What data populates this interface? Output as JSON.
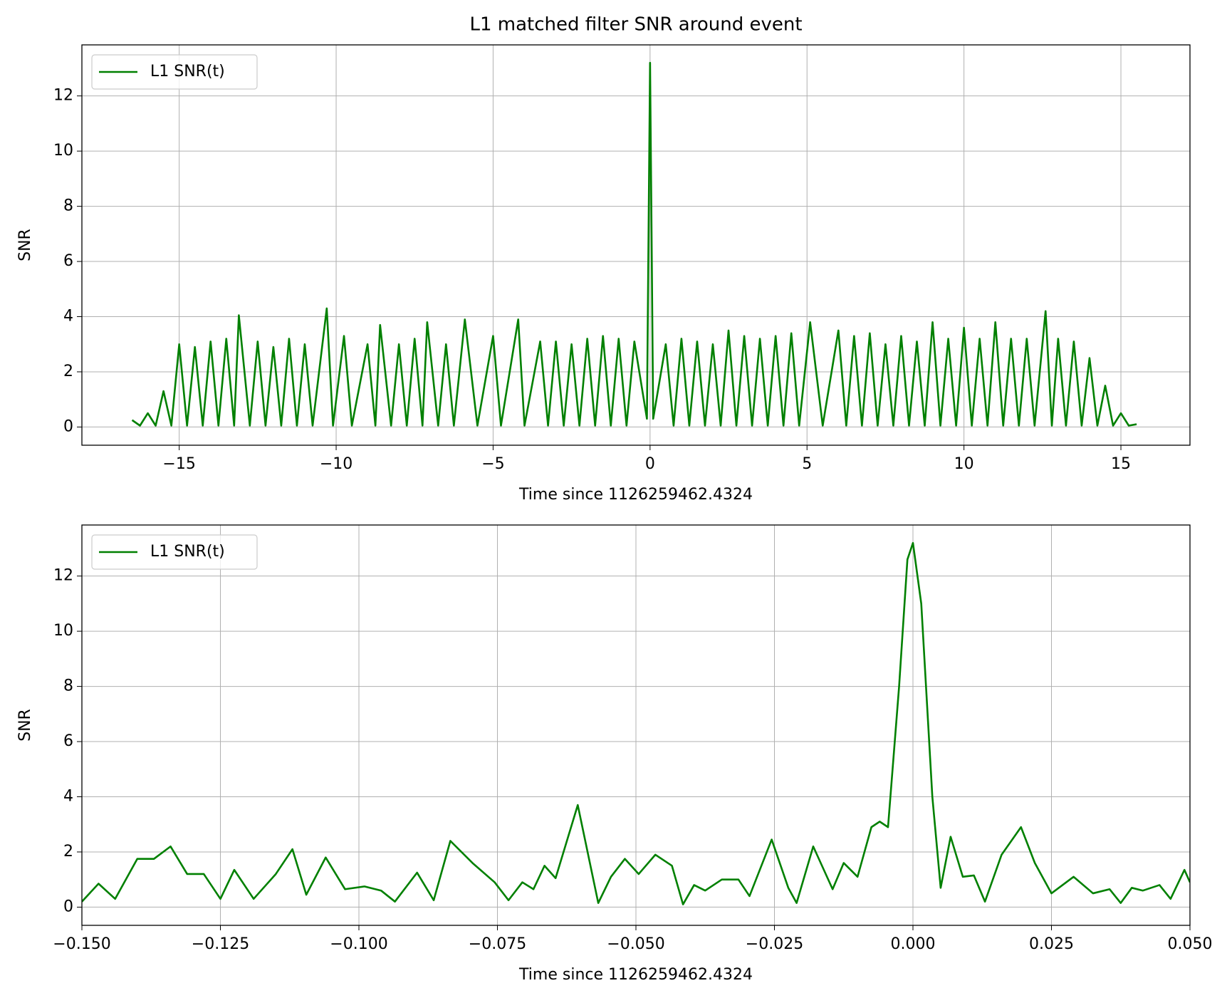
{
  "chart_data": [
    {
      "type": "line",
      "title": "L1 matched filter SNR around event",
      "xlabel": "Time since 1126259462.4324",
      "ylabel": "SNR",
      "xlim": [
        -18.1,
        17.2
      ],
      "ylim": [
        -0.66,
        13.85
      ],
      "xticks": [
        {
          "value": -15,
          "label": "−15"
        },
        {
          "value": -10,
          "label": "−10"
        },
        {
          "value": -5,
          "label": "−5"
        },
        0,
        5,
        10,
        15
      ],
      "yticks": [
        0,
        2,
        4,
        6,
        8,
        10,
        12
      ],
      "grid": true,
      "legend": "upper left",
      "series": [
        {
          "name": "L1 SNR(t)",
          "color": "green",
          "x": [
            -16.5,
            -16.25,
            -16,
            -15.75,
            -15.5,
            -15.25,
            -15,
            -14.75,
            -14.5,
            -14.25,
            -14,
            -13.75,
            -13.5,
            -13.25,
            -13.1,
            -12.75,
            -12.5,
            -12.25,
            -12,
            -11.75,
            -11.5,
            -11.25,
            -11,
            -10.75,
            -10.3,
            -10.1,
            -9.75,
            -9.5,
            -9,
            -8.75,
            -8.6,
            -8.25,
            -8,
            -7.75,
            -7.5,
            -7.25,
            -7.1,
            -6.75,
            -6.5,
            -6.25,
            -5.9,
            -5.5,
            -5,
            -4.75,
            -4.2,
            -4,
            -3.5,
            -3.25,
            -3,
            -2.75,
            -2.5,
            -2.25,
            -2,
            -1.75,
            -1.5,
            -1.25,
            -1,
            -0.75,
            -0.5,
            -0.1,
            0,
            0.1,
            0.5,
            0.75,
            1,
            1.25,
            1.5,
            1.75,
            2,
            2.25,
            2.5,
            2.75,
            3,
            3.25,
            3.5,
            3.75,
            4,
            4.25,
            4.5,
            4.75,
            5.1,
            5.5,
            6,
            6.25,
            6.5,
            6.75,
            7,
            7.25,
            7.5,
            7.75,
            8,
            8.25,
            8.5,
            8.75,
            9,
            9.25,
            9.5,
            9.75,
            10,
            10.25,
            10.5,
            10.75,
            11,
            11.25,
            11.5,
            11.75,
            12,
            12.25,
            12.6,
            12.8,
            13,
            13.25,
            13.5,
            13.75,
            14,
            14.25,
            14.5,
            14.75,
            15,
            15.25,
            15.5
          ],
          "values": [
            0.25,
            0.05,
            0.5,
            0.05,
            1.3,
            0.05,
            3.0,
            0.05,
            2.9,
            0.05,
            3.1,
            0.05,
            3.2,
            0.05,
            4.05,
            0.05,
            3.1,
            0.05,
            2.9,
            0.05,
            3.2,
            0.05,
            3.0,
            0.05,
            4.3,
            0.05,
            3.3,
            0.05,
            3.0,
            0.05,
            3.7,
            0.05,
            3.0,
            0.05,
            3.2,
            0.05,
            3.8,
            0.05,
            3.0,
            0.05,
            3.9,
            0.05,
            3.3,
            0.05,
            3.9,
            0.05,
            3.1,
            0.05,
            3.1,
            0.05,
            3.0,
            0.05,
            3.2,
            0.05,
            3.3,
            0.05,
            3.2,
            0.05,
            3.1,
            0.3,
            13.2,
            0.3,
            3.0,
            0.05,
            3.2,
            0.05,
            3.1,
            0.05,
            3.0,
            0.05,
            3.5,
            0.05,
            3.3,
            0.05,
            3.2,
            0.05,
            3.3,
            0.05,
            3.4,
            0.05,
            3.8,
            0.05,
            3.5,
            0.05,
            3.3,
            0.05,
            3.4,
            0.05,
            3.0,
            0.05,
            3.3,
            0.05,
            3.1,
            0.05,
            3.8,
            0.05,
            3.2,
            0.05,
            3.6,
            0.05,
            3.2,
            0.05,
            3.8,
            0.05,
            3.2,
            0.05,
            3.2,
            0.05,
            4.2,
            0.05,
            3.2,
            0.05,
            3.1,
            0.05,
            2.5,
            0.05,
            1.5,
            0.05,
            0.5,
            0.05,
            0.1
          ]
        }
      ]
    },
    {
      "type": "line",
      "xlabel": "Time since 1126259462.4324",
      "ylabel": "SNR",
      "xlim": [
        -0.15,
        0.05
      ],
      "ylim": [
        -0.66,
        13.85
      ],
      "xticks": [
        {
          "value": -0.15,
          "label": "−0.150"
        },
        {
          "value": -0.125,
          "label": "−0.125"
        },
        {
          "value": -0.1,
          "label": "−0.100"
        },
        {
          "value": -0.075,
          "label": "−0.075"
        },
        {
          "value": -0.05,
          "label": "−0.050"
        },
        {
          "value": -0.025,
          "label": "−0.025"
        },
        {
          "value": 0,
          "label": "0.000"
        },
        {
          "value": 0.025,
          "label": "0.025"
        },
        {
          "value": 0.05,
          "label": "0.050"
        }
      ],
      "yticks": [
        0,
        2,
        4,
        6,
        8,
        10,
        12
      ],
      "grid": true,
      "legend": "upper left",
      "series": [
        {
          "name": "L1 SNR(t)",
          "color": "green",
          "x": [
            -0.15,
            -0.147,
            -0.144,
            -0.14,
            -0.137,
            -0.134,
            -0.131,
            -0.128,
            -0.125,
            -0.1225,
            -0.119,
            -0.115,
            -0.112,
            -0.1095,
            -0.106,
            -0.1025,
            -0.099,
            -0.096,
            -0.0935,
            -0.0895,
            -0.0865,
            -0.0835,
            -0.0795,
            -0.0755,
            -0.073,
            -0.0705,
            -0.0685,
            -0.0665,
            -0.0645,
            -0.0605,
            -0.0568,
            -0.0545,
            -0.052,
            -0.0495,
            -0.0465,
            -0.0435,
            -0.0415,
            -0.0395,
            -0.0375,
            -0.0345,
            -0.0315,
            -0.0295,
            -0.0255,
            -0.0225,
            -0.021,
            -0.018,
            -0.0145,
            -0.0125,
            -0.01,
            -0.0075,
            -0.006,
            -0.0045,
            -0.0025,
            -0.001,
            0,
            0.0015,
            0.0035,
            0.005,
            0.0068,
            0.009,
            0.011,
            0.013,
            0.016,
            0.0195,
            0.022,
            0.025,
            0.029,
            0.0325,
            0.0355,
            0.0375,
            0.0395,
            0.0415,
            0.0445,
            0.0465,
            0.049,
            0.05
          ],
          "values": [
            0.2,
            0.85,
            0.3,
            1.75,
            1.75,
            2.2,
            1.2,
            1.2,
            0.3,
            1.35,
            0.3,
            1.2,
            2.1,
            0.45,
            1.8,
            0.65,
            0.75,
            0.6,
            0.2,
            1.25,
            0.25,
            2.4,
            1.6,
            0.9,
            0.25,
            0.9,
            0.65,
            1.5,
            1.05,
            3.7,
            0.15,
            1.1,
            1.75,
            1.2,
            1.9,
            1.5,
            0.1,
            0.8,
            0.6,
            1.0,
            1.0,
            0.4,
            2.45,
            0.7,
            0.15,
            2.2,
            0.65,
            1.6,
            1.1,
            2.9,
            3.1,
            2.9,
            8.0,
            12.6,
            13.2,
            11.0,
            4.0,
            0.7,
            2.55,
            1.1,
            1.15,
            0.2,
            1.9,
            2.9,
            1.6,
            0.5,
            1.1,
            0.5,
            0.65,
            0.15,
            0.7,
            0.6,
            0.8,
            0.3,
            1.35,
            0.9
          ]
        }
      ]
    }
  ]
}
